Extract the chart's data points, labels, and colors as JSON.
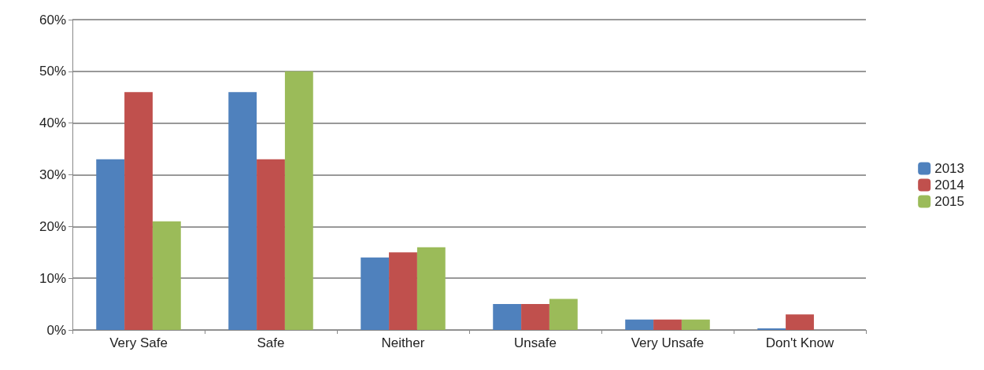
{
  "chart_data": {
    "type": "bar",
    "categories": [
      "Very Safe",
      "Safe",
      "Neither",
      "Unsafe",
      "Very Unsafe",
      "Don't Know"
    ],
    "series": [
      {
        "name": "2013",
        "color": "#4f81bd",
        "values": [
          33,
          46,
          14,
          5,
          2,
          0.3
        ]
      },
      {
        "name": "2014",
        "color": "#c0504d",
        "values": [
          46,
          33,
          15,
          5,
          2,
          3
        ]
      },
      {
        "name": "2015",
        "color": "#9bbb59",
        "values": [
          21,
          50,
          16,
          6,
          2,
          0
        ]
      }
    ],
    "ylim": [
      0,
      60
    ],
    "yticks": [
      {
        "value": 0,
        "label": "0%"
      },
      {
        "value": 10,
        "label": "10%"
      },
      {
        "value": 20,
        "label": "20%"
      },
      {
        "value": 30,
        "label": "30%"
      },
      {
        "value": 40,
        "label": "40%"
      },
      {
        "value": 50,
        "label": "50%"
      },
      {
        "value": 60,
        "label": "60%"
      }
    ],
    "grid": "y",
    "legend": "right"
  }
}
